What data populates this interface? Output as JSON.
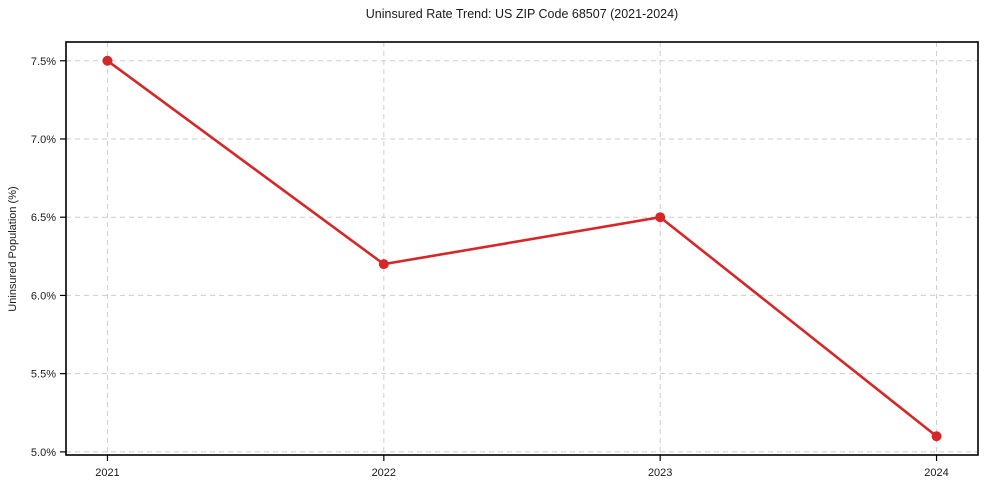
{
  "figure": {
    "background": "#ffffff"
  },
  "chart_data": {
    "type": "line",
    "title": "Uninsured Rate Trend: US ZIP Code 68507 (2021-2024)",
    "xlabel": "",
    "ylabel": "Uninsured Population (%)",
    "x": [
      2021,
      2022,
      2023,
      2024
    ],
    "x_tick_labels": [
      "2021",
      "2022",
      "2023",
      "2024"
    ],
    "values": [
      7.5,
      6.2,
      6.5,
      5.1
    ],
    "y_ticks": [
      5.0,
      5.5,
      6.0,
      6.5,
      7.0,
      7.5
    ],
    "y_tick_labels": [
      "5.0%",
      "5.5%",
      "6.0%",
      "6.5%",
      "7.0%",
      "7.5%"
    ],
    "xlim": [
      2020.85,
      2024.15
    ],
    "ylim": [
      4.98,
      7.62
    ],
    "grid": true,
    "grid_style": "dashed",
    "legend_position": "none",
    "line_color": "#d62728",
    "marker": "circle",
    "marker_color": "#d62728",
    "grid_color": "#cdcdcd",
    "spine_color": "#000000",
    "tick_label_color": "#1a1a1a"
  }
}
